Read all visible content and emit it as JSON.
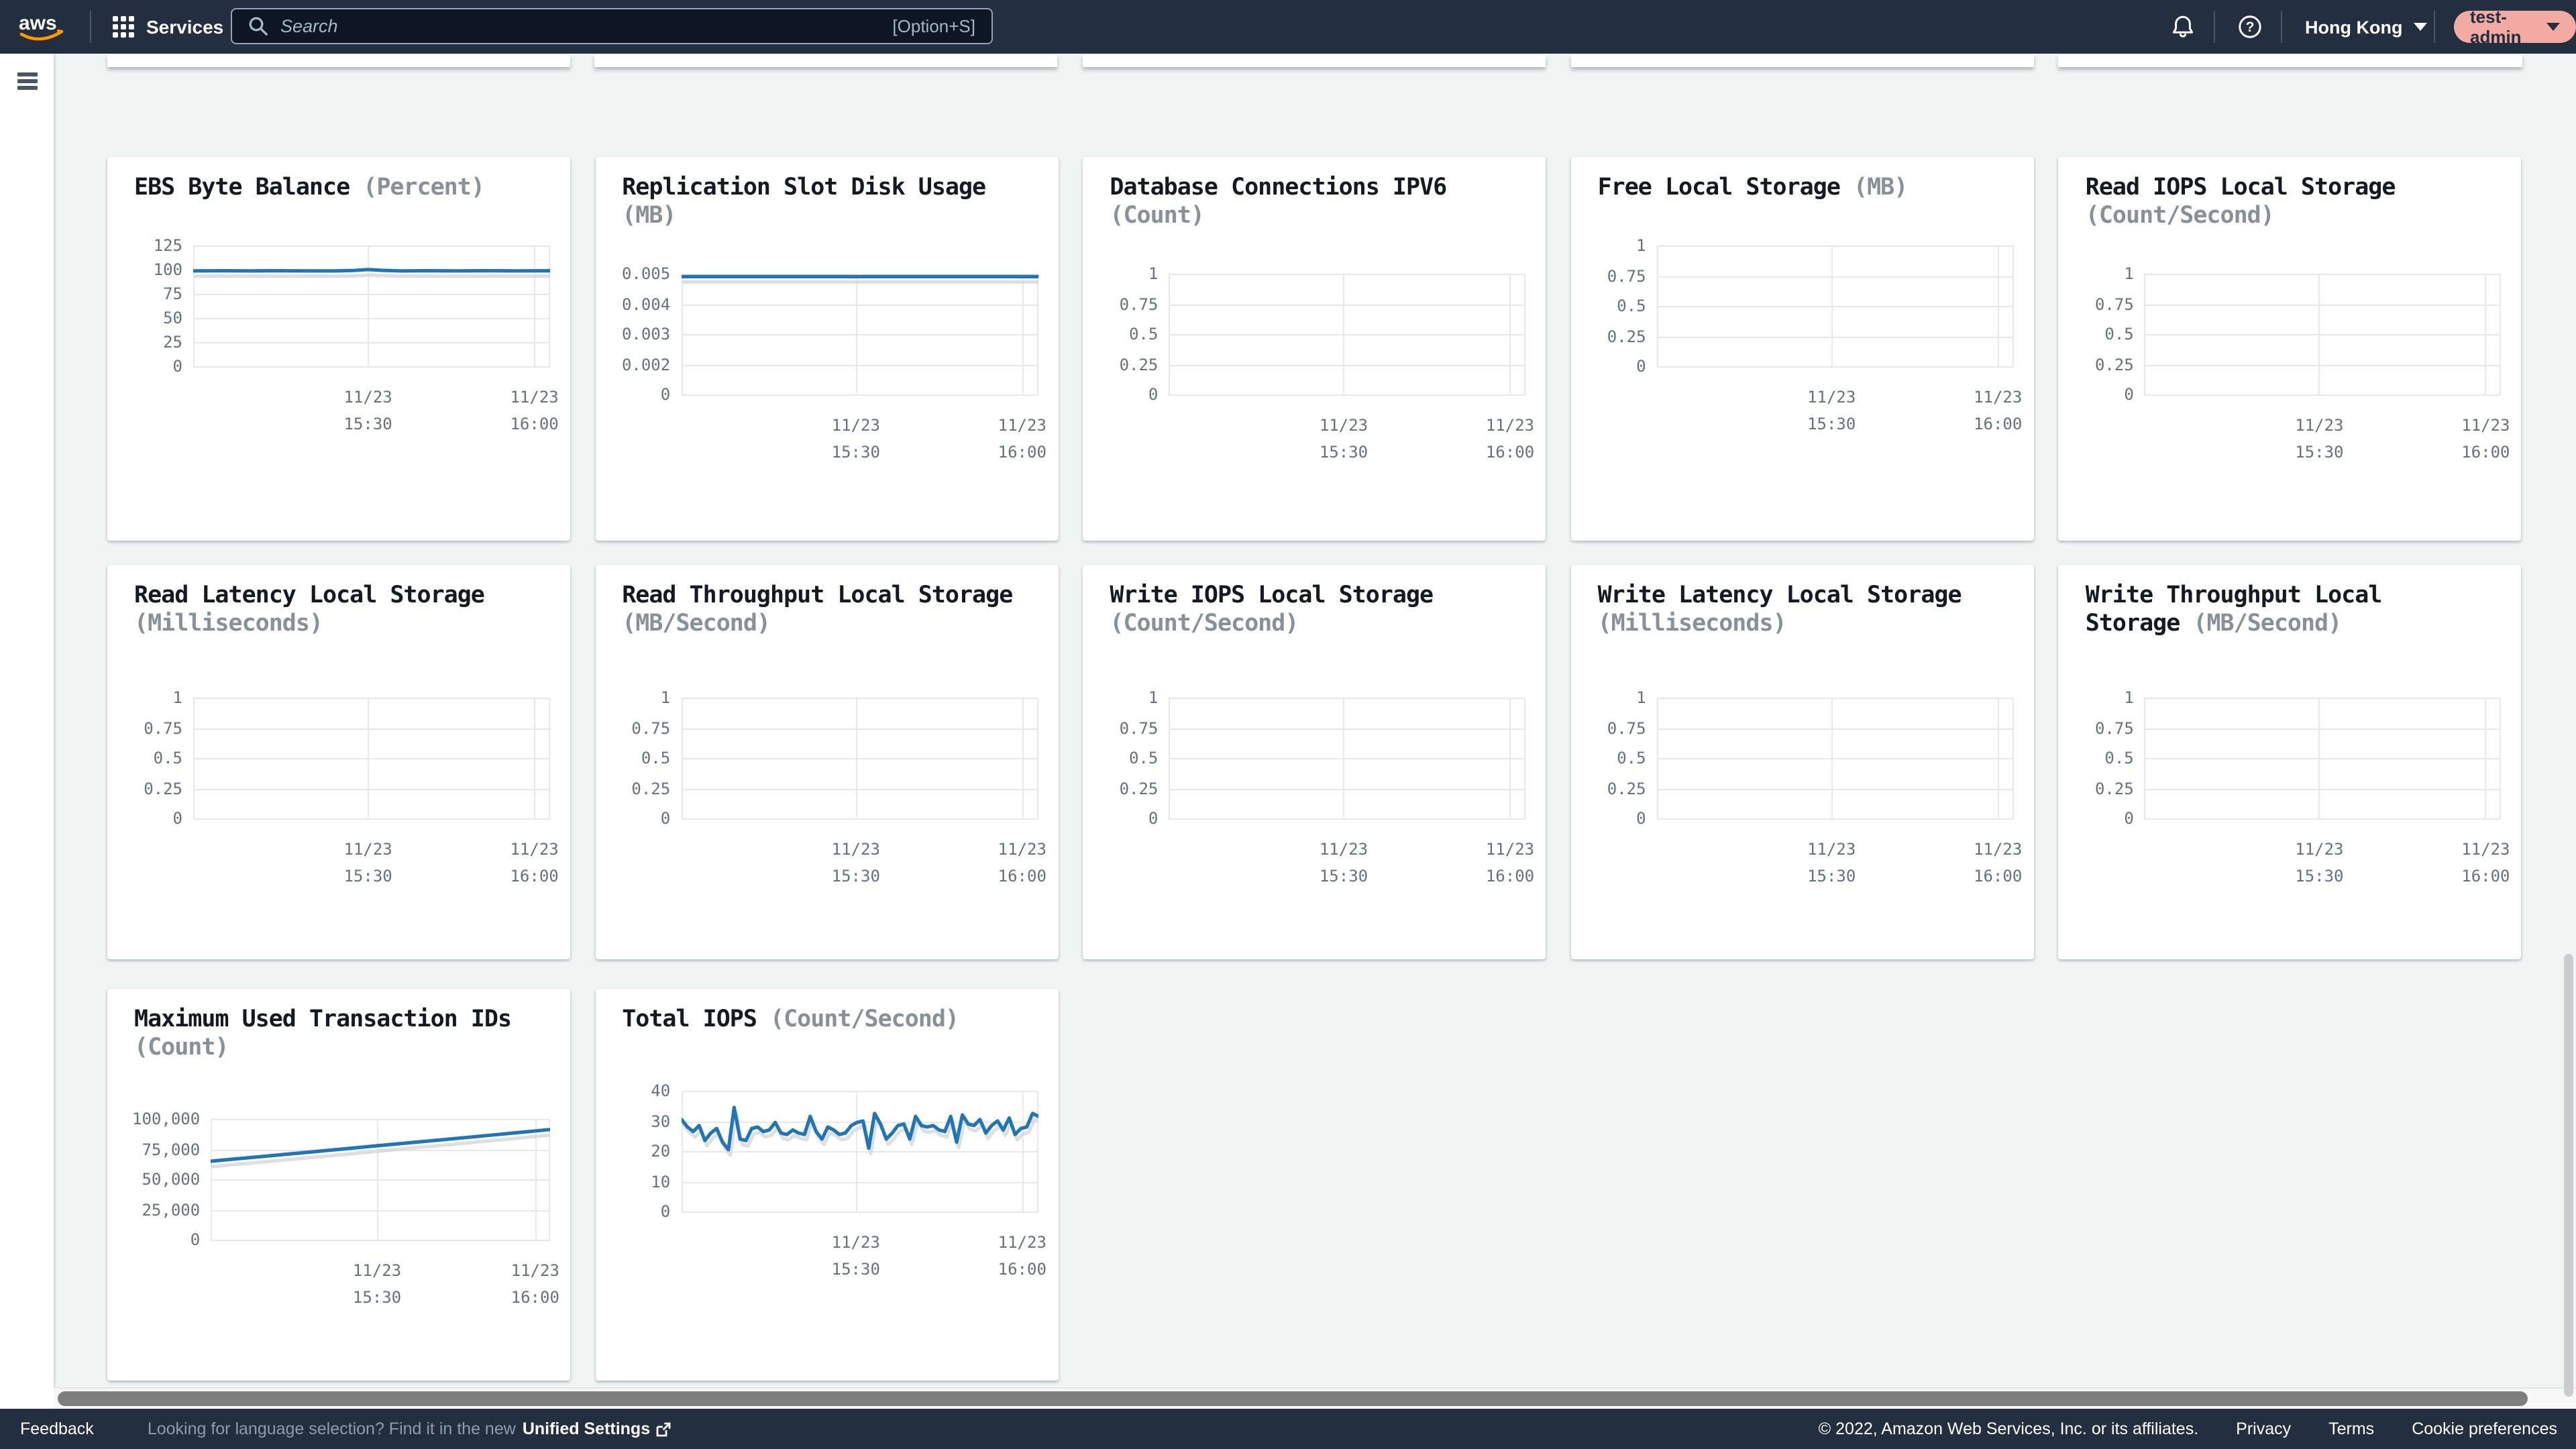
{
  "topbar": {
    "logo_label": "aws",
    "services_label": "Services",
    "search_placeholder": "Search",
    "search_shortcut": "[Option+S]",
    "region_label": "Hong Kong",
    "user_label": "test-admin"
  },
  "footer": {
    "feedback_label": "Feedback",
    "language_prompt": "Looking for language selection? Find it in the new",
    "unified_settings_label": "Unified Settings",
    "copyright": "© 2022, Amazon Web Services, Inc. or its affiliates.",
    "privacy_label": "Privacy",
    "terms_label": "Terms",
    "cookie_label": "Cookie preferences"
  },
  "colors": {
    "topbar_bg": "#232f3e",
    "page_bg": "#f2f3f3",
    "card_bg": "#ffffff",
    "line_blue": "#2076b4",
    "line_shadow": "#d4d4d4",
    "grid": "#e7e8e8",
    "tick_text": "#687078",
    "title_text": "#16191f",
    "unit_text": "#879196",
    "user_badge_bg": "#f1aba3",
    "aws_orange": "#ff9900"
  },
  "chart_data": [
    {
      "type": "line",
      "title": "EBS Byte Balance",
      "unit": "(Percent)",
      "y_ticks": [
        "125",
        "100",
        "75",
        "50",
        "25",
        "0"
      ],
      "ymin": 0,
      "ymax": 125,
      "x_ticks": [
        {
          "pos": 0.49,
          "label": [
            "11/23",
            "15:30"
          ]
        },
        {
          "pos": 0.956,
          "label": [
            "11/23",
            "16:00"
          ]
        }
      ],
      "series": [
        {
          "points": [
            [
              0,
              98.8
            ],
            [
              0.08,
              98.9
            ],
            [
              0.16,
              98.8
            ],
            [
              0.24,
              98.9
            ],
            [
              0.32,
              98.8
            ],
            [
              0.4,
              98.8
            ],
            [
              0.45,
              99.2
            ],
            [
              0.49,
              100.2
            ],
            [
              0.53,
              99.3
            ],
            [
              0.58,
              98.8
            ],
            [
              0.66,
              98.9
            ],
            [
              0.74,
              98.8
            ],
            [
              0.82,
              98.9
            ],
            [
              0.9,
              98.8
            ],
            [
              1,
              98.9
            ]
          ]
        }
      ]
    },
    {
      "type": "line",
      "title": "Replication Slot Disk Usage",
      "unit": "(MB)",
      "y_ticks": [
        "0.005",
        "0.004",
        "0.003",
        "0.002",
        "0"
      ],
      "ymin": 0,
      "ymax": 0.005,
      "x_ticks": [
        {
          "pos": 0.49,
          "label": [
            "11/23",
            "15:30"
          ]
        },
        {
          "pos": 0.956,
          "label": [
            "11/23",
            "16:00"
          ]
        }
      ],
      "series": [
        {
          "points": [
            [
              0,
              0.00488
            ],
            [
              0.5,
              0.00488
            ],
            [
              1,
              0.00488
            ]
          ]
        }
      ]
    },
    {
      "type": "line",
      "title": "Database Connections IPV6",
      "unit": "(Count)",
      "y_ticks": [
        "1",
        "0.75",
        "0.5",
        "0.25",
        "0"
      ],
      "ymin": 0,
      "ymax": 1,
      "x_ticks": [
        {
          "pos": 0.49,
          "label": [
            "11/23",
            "15:30"
          ]
        },
        {
          "pos": 0.956,
          "label": [
            "11/23",
            "16:00"
          ]
        }
      ],
      "series": []
    },
    {
      "type": "line",
      "title": "Free Local Storage",
      "unit": "(MB)",
      "y_ticks": [
        "1",
        "0.75",
        "0.5",
        "0.25",
        "0"
      ],
      "ymin": 0,
      "ymax": 1,
      "x_ticks": [
        {
          "pos": 0.49,
          "label": [
            "11/23",
            "15:30"
          ]
        },
        {
          "pos": 0.956,
          "label": [
            "11/23",
            "16:00"
          ]
        }
      ],
      "series": []
    },
    {
      "type": "line",
      "title": "Read IOPS Local Storage",
      "unit": "(Count/Second)",
      "y_ticks": [
        "1",
        "0.75",
        "0.5",
        "0.25",
        "0"
      ],
      "ymin": 0,
      "ymax": 1,
      "x_ticks": [
        {
          "pos": 0.49,
          "label": [
            "11/23",
            "15:30"
          ]
        },
        {
          "pos": 0.956,
          "label": [
            "11/23",
            "16:00"
          ]
        }
      ],
      "series": []
    },
    {
      "type": "line",
      "title": "Read Latency Local Storage",
      "unit": "(Milliseconds)",
      "y_ticks": [
        "1",
        "0.75",
        "0.5",
        "0.25",
        "0"
      ],
      "ymin": 0,
      "ymax": 1,
      "x_ticks": [
        {
          "pos": 0.49,
          "label": [
            "11/23",
            "15:30"
          ]
        },
        {
          "pos": 0.956,
          "label": [
            "11/23",
            "16:00"
          ]
        }
      ],
      "series": []
    },
    {
      "type": "line",
      "title": "Read Throughput Local Storage",
      "unit": "(MB/Second)",
      "y_ticks": [
        "1",
        "0.75",
        "0.5",
        "0.25",
        "0"
      ],
      "ymin": 0,
      "ymax": 1,
      "x_ticks": [
        {
          "pos": 0.49,
          "label": [
            "11/23",
            "15:30"
          ]
        },
        {
          "pos": 0.956,
          "label": [
            "11/23",
            "16:00"
          ]
        }
      ],
      "series": []
    },
    {
      "type": "line",
      "title": "Write IOPS Local Storage",
      "unit": "(Count/Second)",
      "y_ticks": [
        "1",
        "0.75",
        "0.5",
        "0.25",
        "0"
      ],
      "ymin": 0,
      "ymax": 1,
      "x_ticks": [
        {
          "pos": 0.49,
          "label": [
            "11/23",
            "15:30"
          ]
        },
        {
          "pos": 0.956,
          "label": [
            "11/23",
            "16:00"
          ]
        }
      ],
      "series": []
    },
    {
      "type": "line",
      "title": "Write Latency Local Storage",
      "unit": "(Milliseconds)",
      "y_ticks": [
        "1",
        "0.75",
        "0.5",
        "0.25",
        "0"
      ],
      "ymin": 0,
      "ymax": 1,
      "x_ticks": [
        {
          "pos": 0.49,
          "label": [
            "11/23",
            "15:30"
          ]
        },
        {
          "pos": 0.956,
          "label": [
            "11/23",
            "16:00"
          ]
        }
      ],
      "series": []
    },
    {
      "type": "line",
      "title": "Write Throughput Local Storage",
      "unit": "(MB/Second)",
      "y_ticks": [
        "1",
        "0.75",
        "0.5",
        "0.25",
        "0"
      ],
      "ymin": 0,
      "ymax": 1,
      "x_ticks": [
        {
          "pos": 0.49,
          "label": [
            "11/23",
            "15:30"
          ]
        },
        {
          "pos": 0.956,
          "label": [
            "11/23",
            "16:00"
          ]
        }
      ],
      "series": []
    },
    {
      "type": "line",
      "title": "Maximum Used Transaction IDs",
      "unit": "(Count)",
      "y_ticks": [
        "100,000",
        "75,000",
        "50,000",
        "25,000",
        "0"
      ],
      "ymin": 0,
      "ymax": 100000,
      "x_ticks": [
        {
          "pos": 0.49,
          "label": [
            "11/23",
            "15:30"
          ]
        },
        {
          "pos": 0.956,
          "label": [
            "11/23",
            "16:00"
          ]
        }
      ],
      "series": [
        {
          "points": [
            [
              0,
              65000
            ],
            [
              0.25,
              71400
            ],
            [
              0.49,
              77800
            ],
            [
              0.75,
              84600
            ],
            [
              1,
              91200
            ]
          ]
        }
      ]
    },
    {
      "type": "line",
      "title": "Total IOPS",
      "unit": "(Count/Second)",
      "y_ticks": [
        "40",
        "30",
        "20",
        "10",
        "0"
      ],
      "ymin": 0,
      "ymax": 40,
      "x_ticks": [
        {
          "pos": 0.49,
          "label": [
            "11/23",
            "15:30"
          ]
        },
        {
          "pos": 0.956,
          "label": [
            "11/23",
            "16:00"
          ]
        }
      ],
      "series": [
        {
          "values": [
            30.5,
            28,
            26.5,
            28.5,
            23.5,
            26,
            27.5,
            23,
            20.5,
            34.5,
            24,
            23.5,
            27.5,
            28,
            26.5,
            27,
            29.5,
            26,
            25.5,
            27,
            26,
            25.5,
            31.5,
            26.5,
            24,
            28,
            27,
            25.5,
            26,
            28.5,
            29.5,
            30,
            21,
            32.5,
            29,
            24,
            26,
            28.5,
            29,
            24,
            31.5,
            28.5,
            28,
            28.5,
            27,
            26.5,
            31.5,
            23,
            32,
            29,
            28.5,
            30.5,
            26,
            28.5,
            30,
            27,
            31,
            25.5,
            27.5,
            28,
            32.5,
            31.5
          ]
        }
      ]
    }
  ]
}
